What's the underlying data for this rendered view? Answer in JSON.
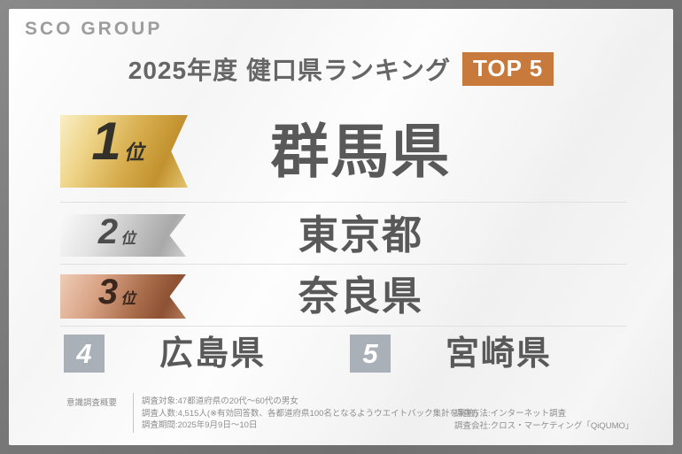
{
  "logo": {
    "text": "SCO GROUP"
  },
  "header": {
    "title": "2025年度 健口県ランキング",
    "top_badge": "TOP 5"
  },
  "ranking": [
    {
      "rank": "1",
      "rank_suffix": "位",
      "name": "群馬県",
      "medal": "gold"
    },
    {
      "rank": "2",
      "rank_suffix": "位",
      "name": "東京都",
      "medal": "silver"
    },
    {
      "rank": "3",
      "rank_suffix": "位",
      "name": "奈良県",
      "medal": "bronze"
    },
    {
      "rank": "4",
      "name": "広島県",
      "medal": "gray"
    },
    {
      "rank": "5",
      "name": "宮崎県",
      "medal": "gray"
    }
  ],
  "survey": {
    "label": "意識調査概要",
    "details_left": [
      "調査対象:47都道府県の20代〜60代の男女",
      "調査人数:4,515人(※有効回答数、各都道府県100名となるようウエイトバック集計を実施)",
      "調査期間:2025年9月9日〜10日"
    ],
    "details_right": [
      "調査方法:インターネット調査",
      "調査会社:クロス・マーケティング「QiQUMO」"
    ]
  },
  "colors": {
    "accent_orange": "#c87a3c",
    "gold": "#d6ab4b",
    "silver": "#bdbdbd",
    "bronze": "#a96c4b",
    "minor_badge_gray": "#aab0b7",
    "frame_gray": "#787878",
    "text_dark": "#595959"
  }
}
